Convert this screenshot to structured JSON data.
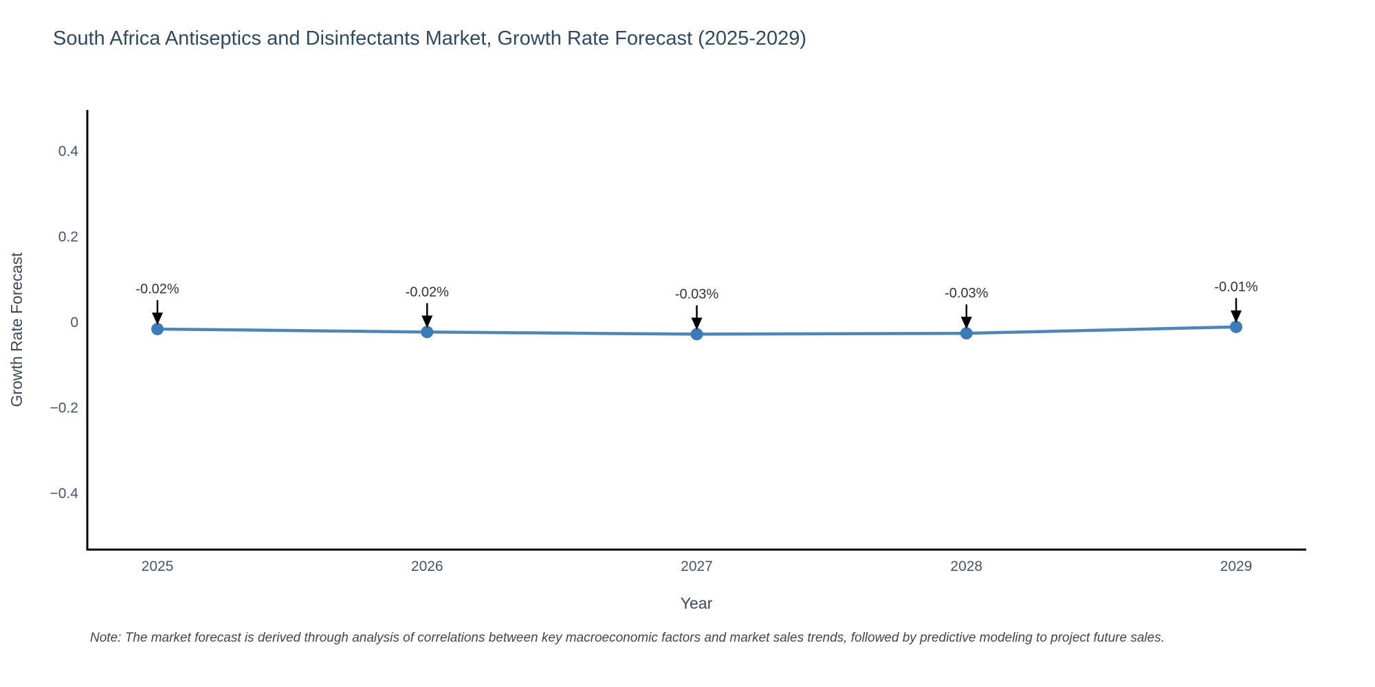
{
  "title": "South Africa Antiseptics and Disinfectants Market, Growth Rate Forecast (2025-2029)",
  "note": "Note: The market forecast is derived through analysis of correlations between key macroeconomic factors and market sales trends, followed by predictive modeling to project future sales.",
  "chart_data": {
    "type": "line",
    "title": "South Africa Antiseptics and Disinfectants Market, Growth Rate Forecast (2025-2029)",
    "categories": [
      "2025",
      "2026",
      "2027",
      "2028",
      "2029"
    ],
    "values": [
      -0.02,
      -0.02,
      -0.03,
      -0.03,
      -0.01
    ],
    "plot_values_estimate": [
      -0.016,
      -0.023,
      -0.028,
      -0.026,
      -0.011
    ],
    "point_labels": [
      "-0.02%",
      "-0.02%",
      "-0.03%",
      "-0.03%",
      "-0.01%"
    ],
    "xlabel": "Year",
    "ylabel": "Growth Rate Forecast",
    "ylim": [
      -0.53,
      0.5
    ],
    "yticks": [
      0.4,
      0.2,
      0,
      -0.2,
      -0.4
    ],
    "ytick_labels": [
      "0.4",
      "0.2",
      "0",
      "−0.2",
      "−0.4"
    ],
    "grid": false,
    "legend": "none",
    "line_color": "#4e86b5",
    "marker_color": "#3a7cba",
    "annotation_arrow_color": "#000000"
  },
  "colors": {
    "background": "#ffffff",
    "title": "#2d4a63",
    "tick": "#44546a",
    "axis_label": "#39485c",
    "annotation": "#333333",
    "note": "#454545",
    "spine": "#000000"
  }
}
